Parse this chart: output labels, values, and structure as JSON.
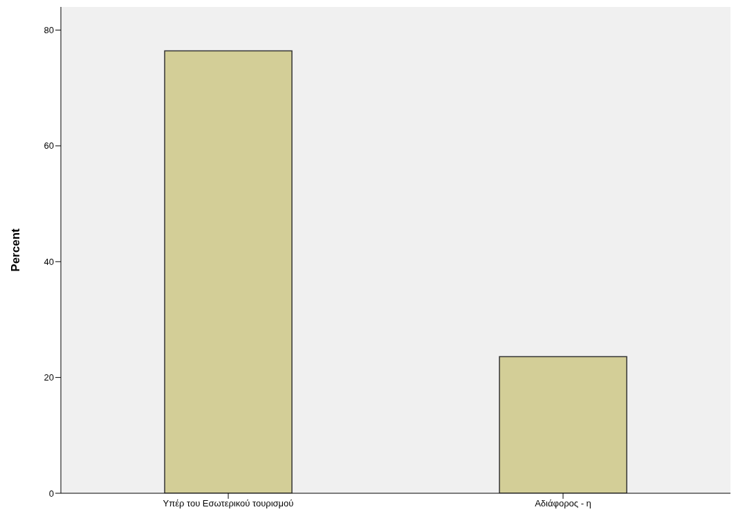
{
  "chart_data": {
    "type": "bar",
    "categories": [
      "Υπέρ του Εσωτερικού τουρισμού",
      "Αδιάφορος - η"
    ],
    "values": [
      76.4,
      23.6
    ],
    "color": "#d3ce97",
    "ylabel": "Percent",
    "ylim": [
      0,
      84
    ],
    "yticks": [
      0,
      20,
      40,
      60,
      80
    ],
    "grid": false
  }
}
